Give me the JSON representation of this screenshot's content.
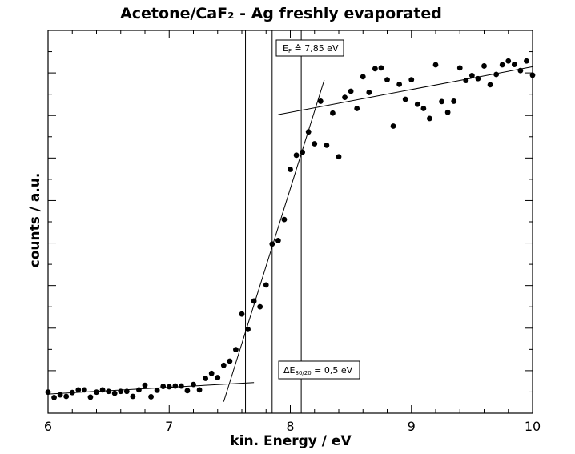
{
  "chart_data": {
    "type": "scatter",
    "title": "Acetone/CaF₂ - Ag freshly evaporated",
    "xlabel": "kin. Energy / eV",
    "ylabel": "counts / a.u.",
    "xlim": [
      6,
      10
    ],
    "ylim": [
      0,
      100
    ],
    "x_ticks": [
      "6",
      "7",
      "8",
      "9",
      "10"
    ],
    "grid": false,
    "series": [
      {
        "x": [
          6.0,
          6.05,
          6.1,
          6.15,
          6.2,
          6.25,
          6.3,
          6.35,
          6.4,
          6.45,
          6.5,
          6.55,
          6.6,
          6.65,
          6.7,
          6.75,
          6.8,
          6.85,
          6.9,
          6.95,
          7.0,
          7.05,
          7.1,
          7.15,
          7.2,
          7.25,
          7.3,
          7.35,
          7.4,
          7.45,
          7.5,
          7.55,
          7.6,
          7.65,
          7.7,
          7.75,
          7.8,
          7.85,
          7.9,
          7.95,
          8.0,
          8.05,
          8.1,
          8.15,
          8.2,
          8.25,
          8.3,
          8.35,
          8.4,
          8.45,
          8.5,
          8.55,
          8.6,
          8.65,
          8.7,
          8.75,
          8.8,
          8.85,
          8.9,
          8.95,
          9.0,
          9.05,
          9.1,
          9.15,
          9.2,
          9.25,
          9.3,
          9.35,
          9.4,
          9.45,
          9.5,
          9.55,
          9.6,
          9.65,
          9.7,
          9.75,
          9.8,
          9.85,
          9.9,
          9.95,
          10.0
        ],
        "y": [
          5.5,
          4.1,
          4.8,
          4.4,
          5.4,
          6.1,
          6.1,
          4.2,
          5.5,
          6.1,
          5.7,
          5.2,
          5.7,
          5.7,
          4.4,
          6.1,
          7.3,
          4.3,
          6.0,
          7.0,
          6.9,
          7.1,
          7.1,
          5.9,
          7.5,
          6.1,
          9.1,
          10.4,
          9.3,
          12.5,
          13.6,
          16.6,
          25.9,
          21.9,
          29.3,
          27.8,
          33.5,
          44.2,
          45.1,
          50.6,
          63.7,
          67.4,
          68.2,
          73.5,
          70.4,
          81.5,
          70.0,
          78.4,
          67.0,
          82.5,
          84.1,
          79.6,
          87.9,
          83.8,
          90.0,
          90.2,
          87.1,
          75.0,
          85.9,
          82.0,
          87.1,
          80.7,
          79.6,
          77.0,
          91.0,
          81.4,
          78.6,
          81.5,
          90.2,
          86.9,
          88.2,
          87.4,
          90.7,
          85.8,
          88.5,
          91.0,
          92.0,
          91.1,
          89.5,
          92.0,
          88.3
        ]
      }
    ],
    "fit_lines": [
      {
        "x": [
          6.0,
          7.7
        ],
        "y": [
          5.0,
          8.0
        ]
      },
      {
        "x": [
          7.45,
          8.28
        ],
        "y": [
          3.0,
          87.0
        ]
      },
      {
        "x": [
          7.9,
          10.0
        ],
        "y": [
          78.0,
          90.5
        ]
      }
    ],
    "vertical_lines": [
      7.63,
      7.85,
      8.09
    ],
    "annotations": {
      "ef_main": "E",
      "ef_sub": "F",
      "ef_value": " ≙ 7,85 eV",
      "de_main": "ΔE",
      "de_sub": "80/20",
      "de_value": " = 0,5 eV"
    }
  }
}
